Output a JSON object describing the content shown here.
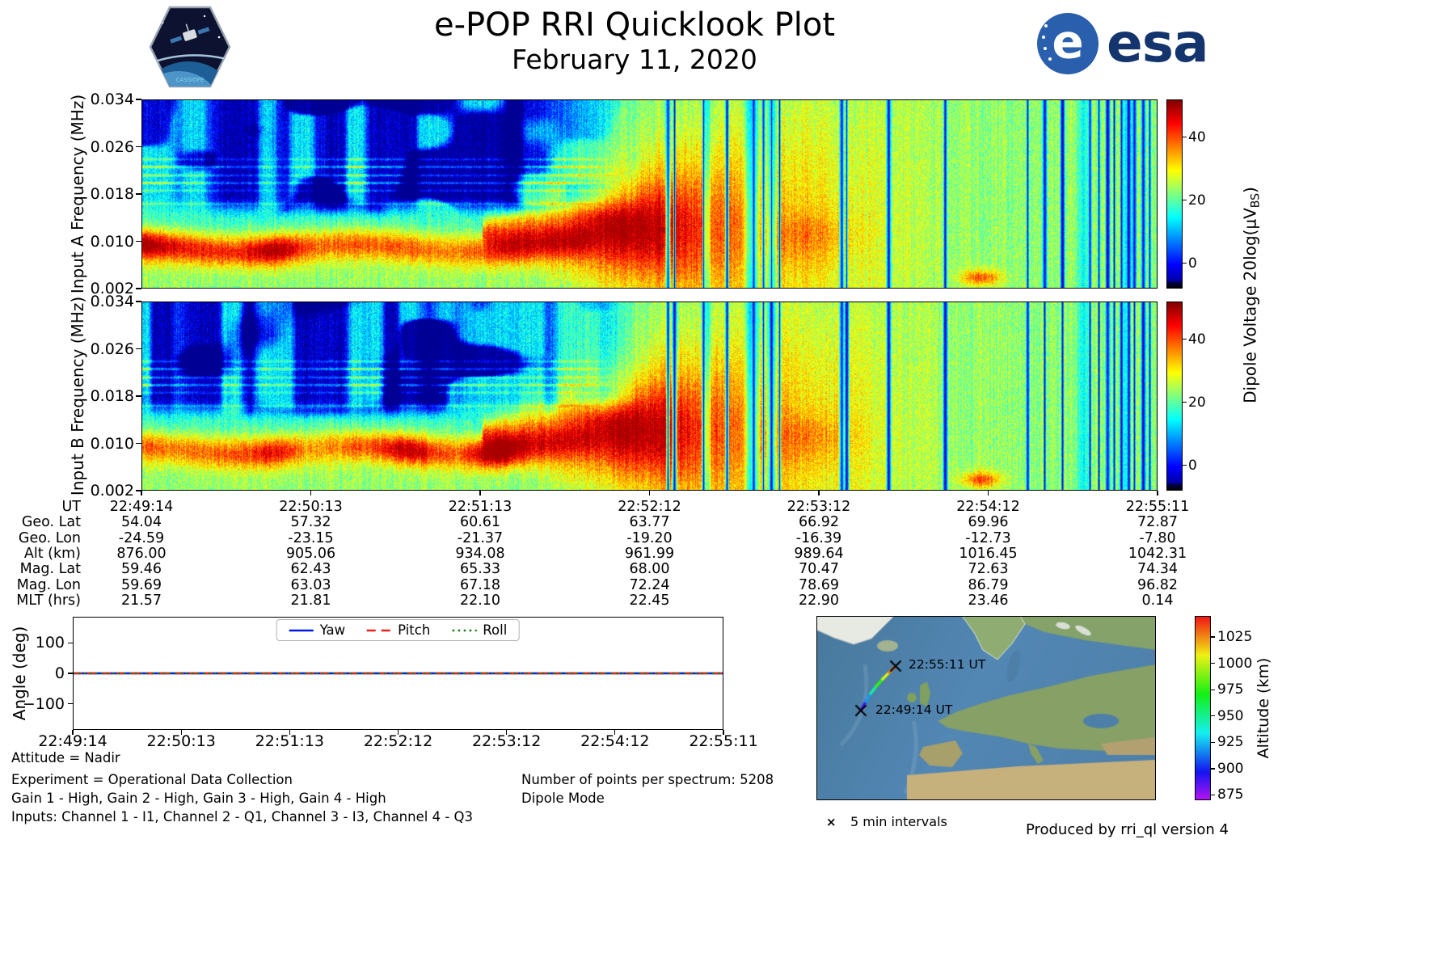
{
  "header": {
    "title": "e-POP RRI Quicklook Plot",
    "date": "February 11, 2020",
    "esa_text": "esa",
    "patch_text": "CASSIOPE"
  },
  "colorbar_label": {
    "prefix": "Dipole Voltage 20log(μV",
    "sub": "BS",
    "suffix": ")"
  },
  "chart_data": [
    {
      "type": "heatmap",
      "name": "input-a-spectrogram",
      "ylabel": "Input A Frequency (MHz)",
      "ylim": [
        0.002,
        0.034
      ],
      "yticks": [
        "0.034",
        "0.026",
        "0.018",
        "0.010",
        "0.002"
      ],
      "xticks": [
        "22:49:14",
        "22:50:13",
        "22:51:13",
        "22:52:12",
        "22:53:12",
        "22:54:12",
        "22:55:11"
      ],
      "colorbar": {
        "label": "Dipole Voltage 20log(μV_BS)",
        "ticks": [
          40,
          20,
          0
        ],
        "range": [
          -8,
          52
        ]
      },
      "colormap": "jet",
      "features": [
        "dark blue broadband region with heavy vertical dropout streaks above 0.015 MHz before 22:51:30",
        "bright narrowband horizontal emission lines near 0.016-0.024 MHz before 22:51:30",
        "intense green-orange band near 0.008-0.012 MHz from 22:49:14 to about 22:51:00",
        "funnel-shaped bright enhancement widening between 22:51:20 and 22:52:30 with orange core",
        "uniform green background with sparse black interference columns after 22:52:30",
        "small orange patch near 0.004 MHz around 22:54:20"
      ]
    },
    {
      "type": "heatmap",
      "name": "input-b-spectrogram",
      "ylabel": "Input B Frequency (MHz)",
      "ylim": [
        0.002,
        0.034
      ],
      "yticks": [
        "0.034",
        "0.026",
        "0.018",
        "0.010",
        "0.002"
      ],
      "xticks": [
        "22:49:14",
        "22:50:13",
        "22:51:13",
        "22:52:12",
        "22:53:12",
        "22:54:12",
        "22:55:11"
      ],
      "colorbar": {
        "label": "Dipole Voltage 20log(μV_BS)",
        "ticks": [
          40,
          20,
          0
        ],
        "range": [
          -8,
          52
        ]
      },
      "colormap": "jet",
      "features": [
        "same morphology as Input A: blue streaked region, narrowband lines, bright low-frequency band, expanding funnel, green background with black dropout columns"
      ]
    },
    {
      "type": "line",
      "name": "attitude-angles",
      "ylabel": "Angle (deg)",
      "ylim": [
        -185,
        185
      ],
      "yticks": [
        "100",
        "0",
        "−100"
      ],
      "ytick_values": [
        100,
        0,
        -100
      ],
      "x": [
        "22:49:14",
        "22:50:13",
        "22:51:13",
        "22:52:12",
        "22:53:12",
        "22:54:12",
        "22:55:11"
      ],
      "series": [
        {
          "name": "Yaw",
          "color": "#0018ee",
          "style": "solid",
          "values": [
            0,
            0,
            0,
            0,
            0,
            0,
            0
          ]
        },
        {
          "name": "Pitch",
          "color": "#e8221c",
          "style": "dashed",
          "values": [
            0,
            0,
            0,
            0,
            0,
            0,
            0
          ]
        },
        {
          "name": "Roll",
          "color": "#1a7a1a",
          "style": "dotted",
          "values": [
            0,
            0,
            0,
            0,
            0,
            0,
            0
          ]
        }
      ],
      "legend_position": "top center",
      "grid": false
    },
    {
      "type": "scatter",
      "name": "ground-track-map",
      "region": "North Atlantic / Europe",
      "track": {
        "ut": [
          "22:49:14",
          "22:50:13",
          "22:51:13",
          "22:52:12",
          "22:53:12",
          "22:54:12",
          "22:55:11"
        ],
        "lat": [
          54.04,
          57.32,
          60.61,
          63.77,
          66.92,
          69.96,
          72.87
        ],
        "lon": [
          -24.59,
          -23.15,
          -21.37,
          -19.2,
          -16.39,
          -12.73,
          -7.8
        ],
        "alt_km": [
          876.0,
          905.06,
          934.08,
          961.99,
          989.64,
          1016.45,
          1042.31
        ]
      },
      "annotations": [
        "22:49:14 UT",
        "22:55:11 UT"
      ],
      "colorbar": {
        "label": "Altitude (km)",
        "ticks": [
          1025,
          1000,
          975,
          950,
          925,
          900,
          875
        ],
        "range": [
          870,
          1045
        ]
      },
      "marker_note": "5 min intervals",
      "marker_glyph": "×"
    }
  ],
  "ephemeris": {
    "rows": [
      {
        "label": "UT",
        "values": [
          "22:49:14",
          "22:50:13",
          "22:51:13",
          "22:52:12",
          "22:53:12",
          "22:54:12",
          "22:55:11"
        ]
      },
      {
        "label": "Geo. Lat",
        "values": [
          "54.04",
          "57.32",
          "60.61",
          "63.77",
          "66.92",
          "69.96",
          "72.87"
        ]
      },
      {
        "label": "Geo. Lon",
        "values": [
          "-24.59",
          "-23.15",
          "-21.37",
          "-19.20",
          "-16.39",
          "-12.73",
          "-7.80"
        ]
      },
      {
        "label": "Alt (km)",
        "values": [
          "876.00",
          "905.06",
          "934.08",
          "961.99",
          "989.64",
          "1016.45",
          "1042.31"
        ]
      },
      {
        "label": "Mag. Lat",
        "values": [
          "59.46",
          "62.43",
          "65.33",
          "68.00",
          "70.47",
          "72.63",
          "74.34"
        ]
      },
      {
        "label": "Mag. Lon",
        "values": [
          "59.69",
          "63.03",
          "67.18",
          "72.24",
          "78.69",
          "86.79",
          "96.82"
        ]
      },
      {
        "label": "MLT (hrs)",
        "values": [
          "21.57",
          "21.81",
          "22.10",
          "22.45",
          "22.90",
          "23.46",
          "0.14"
        ]
      }
    ]
  },
  "footer": {
    "attitude": "Attitude = Nadir",
    "experiment": "Experiment = Operational Data Collection",
    "gains": "Gain 1 - High, Gain 2 - High, Gain 3 - High, Gain 4 - High",
    "inputs": "Inputs: Channel 1 - I1, Channel 2 - Q1, Channel 3 - I3, Channel 4 - Q3",
    "points": "Number of points per spectrum: 5208",
    "mode": "Dipole Mode",
    "produced": "Produced by rri_ql version 4"
  }
}
